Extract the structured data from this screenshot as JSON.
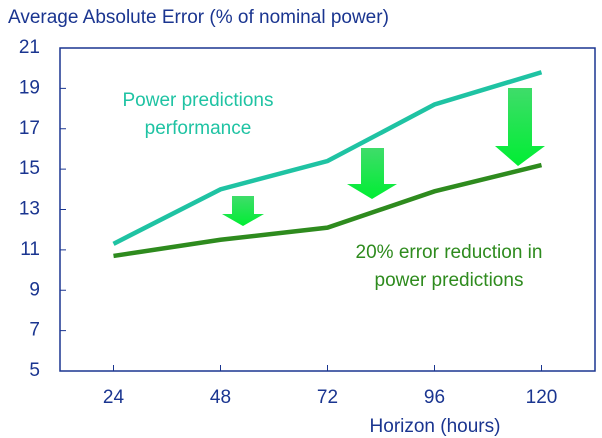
{
  "chart_data": {
    "type": "line",
    "title": "Average Absolute Error (% of nominal power)",
    "x_label": "Horizon (hours)",
    "x": [
      24,
      48,
      72,
      96,
      120
    ],
    "xlim": [
      12,
      132
    ],
    "xticks": [
      24,
      48,
      72,
      96,
      120
    ],
    "ylim": [
      5,
      21
    ],
    "yticks": [
      5,
      7,
      9,
      11,
      13,
      15,
      17,
      19,
      21
    ],
    "grid": false,
    "series": [
      {
        "name": "Power predictions performance",
        "color": "#1fc3a3",
        "values": [
          11.3,
          14.0,
          15.4,
          18.2,
          19.8
        ]
      },
      {
        "name": "20% error reduction in power predictions",
        "color": "#2e8b1e",
        "values": [
          10.7,
          11.5,
          12.1,
          13.9,
          15.2
        ]
      }
    ],
    "annotations": [
      [
        "Power predictions",
        "performance"
      ],
      [
        "20% error reduction in",
        "power predictions"
      ]
    ]
  }
}
